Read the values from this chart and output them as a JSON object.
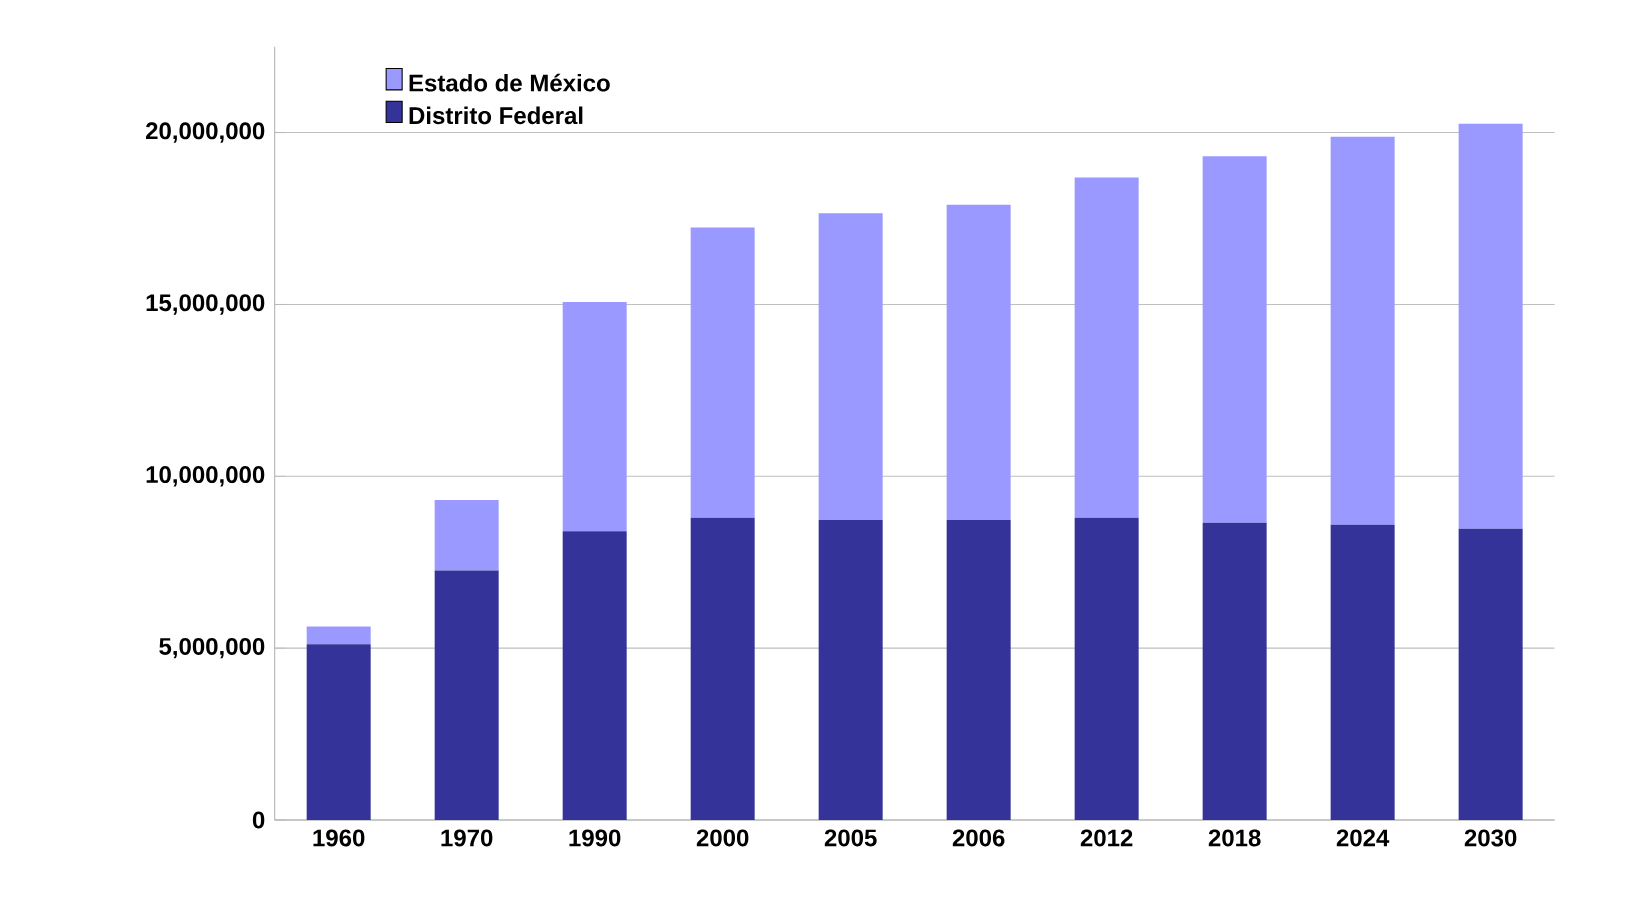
{
  "chart_data": {
    "type": "bar",
    "stacked": true,
    "categories": [
      "1960",
      "1970",
      "1990",
      "2000",
      "2005",
      "2006",
      "2012",
      "2018",
      "2024",
      "2030"
    ],
    "series": [
      {
        "name": "Distrito Federal",
        "color": "#333399",
        "values": [
          5110000,
          7260000,
          8400000,
          8790000,
          8730000,
          8730000,
          8790000,
          8650000,
          8590000,
          8470000
        ]
      },
      {
        "name": "Estado de México",
        "color": "#9999ff",
        "values": [
          520000,
          2050000,
          6670000,
          8450000,
          8920000,
          9170000,
          9900000,
          10660000,
          11290000,
          11790000
        ]
      }
    ],
    "ylim": [
      0,
      22500000
    ],
    "yticks": [
      {
        "value": 0,
        "label": "0"
      },
      {
        "value": 5000000,
        "label": "5,000,000"
      },
      {
        "value": 10000000,
        "label": "10,000,000"
      },
      {
        "value": 15000000,
        "label": "15,000,000"
      },
      {
        "value": 20000000,
        "label": "20,000,000"
      }
    ],
    "grid": "y",
    "legend": "top left"
  }
}
